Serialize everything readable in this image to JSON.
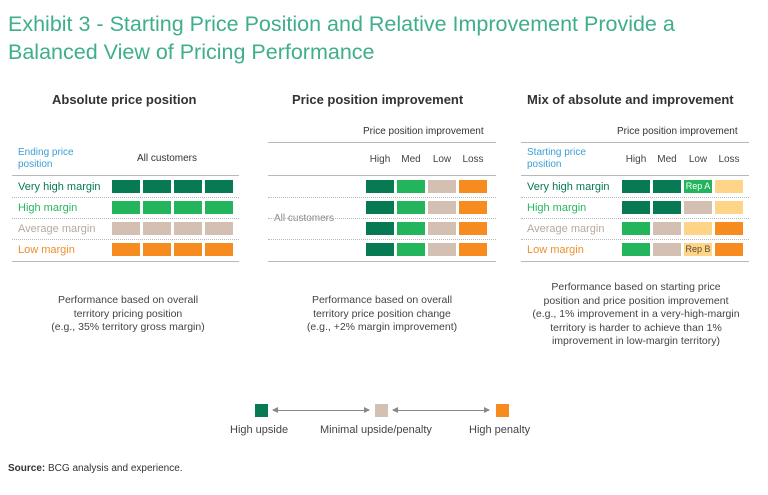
{
  "title": "Exhibit 3 - Starting Price Position and Relative Improvement Provide a Balanced View of Pricing Performance",
  "colors": {
    "high_upside": "#077a53",
    "high_upside_light": "#23b55c",
    "minimal": "#d4c0b3",
    "high_penalty": "#f68b1f",
    "high_penalty_light": "#fdd488",
    "title": "#3fae8c"
  },
  "panels": {
    "absolute": {
      "title": "Absolute price position",
      "axis_label": "Ending price position",
      "column_header": "All customers",
      "rows": [
        {
          "label": "Very high margin",
          "cells": [
            "high_upside",
            "high_upside",
            "high_upside",
            "high_upside"
          ]
        },
        {
          "label": "High margin",
          "cells": [
            "high_upside_light",
            "high_upside_light",
            "high_upside_light",
            "high_upside_light"
          ]
        },
        {
          "label": "Average margin",
          "cells": [
            "minimal",
            "minimal",
            "minimal",
            "minimal"
          ]
        },
        {
          "label": "Low margin",
          "cells": [
            "high_penalty",
            "high_penalty",
            "high_penalty",
            "high_penalty"
          ]
        }
      ],
      "description": [
        "Performance based on overall",
        "territory pricing position",
        "(e.g., 35% territory gross margin)"
      ]
    },
    "improvement": {
      "title": "Price position improvement",
      "subtitle": "Price position improvement",
      "columns": [
        "High",
        "Med",
        "Low",
        "Loss"
      ],
      "row_label": "All customers",
      "rows": [
        {
          "cells": [
            "high_upside",
            "high_upside_light",
            "minimal",
            "high_penalty"
          ]
        },
        {
          "cells": [
            "high_upside",
            "high_upside_light",
            "minimal",
            "high_penalty"
          ]
        },
        {
          "cells": [
            "high_upside",
            "high_upside_light",
            "minimal",
            "high_penalty"
          ]
        },
        {
          "cells": [
            "high_upside",
            "high_upside_light",
            "minimal",
            "high_penalty"
          ]
        }
      ],
      "description": [
        "Performance based on overall",
        "territory price position change",
        "(e.g., +2% margin improvement)"
      ]
    },
    "mix": {
      "title": "Mix of absolute and improvement",
      "subtitle": "Price position improvement",
      "axis_label": "Starting price position",
      "columns": [
        "High",
        "Med",
        "Low",
        "Loss"
      ],
      "rows": [
        {
          "label": "Very high margin",
          "cells": [
            "high_upside",
            "high_upside",
            "high_upside_light",
            "high_penalty_light"
          ],
          "tags": [
            "",
            "",
            "Rep A",
            ""
          ]
        },
        {
          "label": "High margin",
          "cells": [
            "high_upside",
            "high_upside",
            "minimal",
            "high_penalty_light"
          ],
          "tags": [
            "",
            "",
            "",
            ""
          ]
        },
        {
          "label": "Average margin",
          "cells": [
            "high_upside_light",
            "minimal",
            "high_penalty_light",
            "high_penalty"
          ],
          "tags": [
            "",
            "",
            "",
            ""
          ]
        },
        {
          "label": "Low margin",
          "cells": [
            "high_upside_light",
            "minimal",
            "high_penalty_light",
            "high_penalty"
          ],
          "tags": [
            "",
            "",
            "Rep B",
            ""
          ]
        }
      ],
      "description": [
        "Performance based on starting price",
        "position and price position improvement",
        "(e.g., 1% improvement in a very-high-margin",
        "territory is harder to achieve than 1%",
        "improvement in low-margin territory)"
      ]
    }
  },
  "legend": {
    "high_upside": "High upside",
    "minimal": "Minimal upside/penalty",
    "high_penalty": "High penalty"
  },
  "source": {
    "label": "Source:",
    "text": "BCG analysis and experience."
  }
}
